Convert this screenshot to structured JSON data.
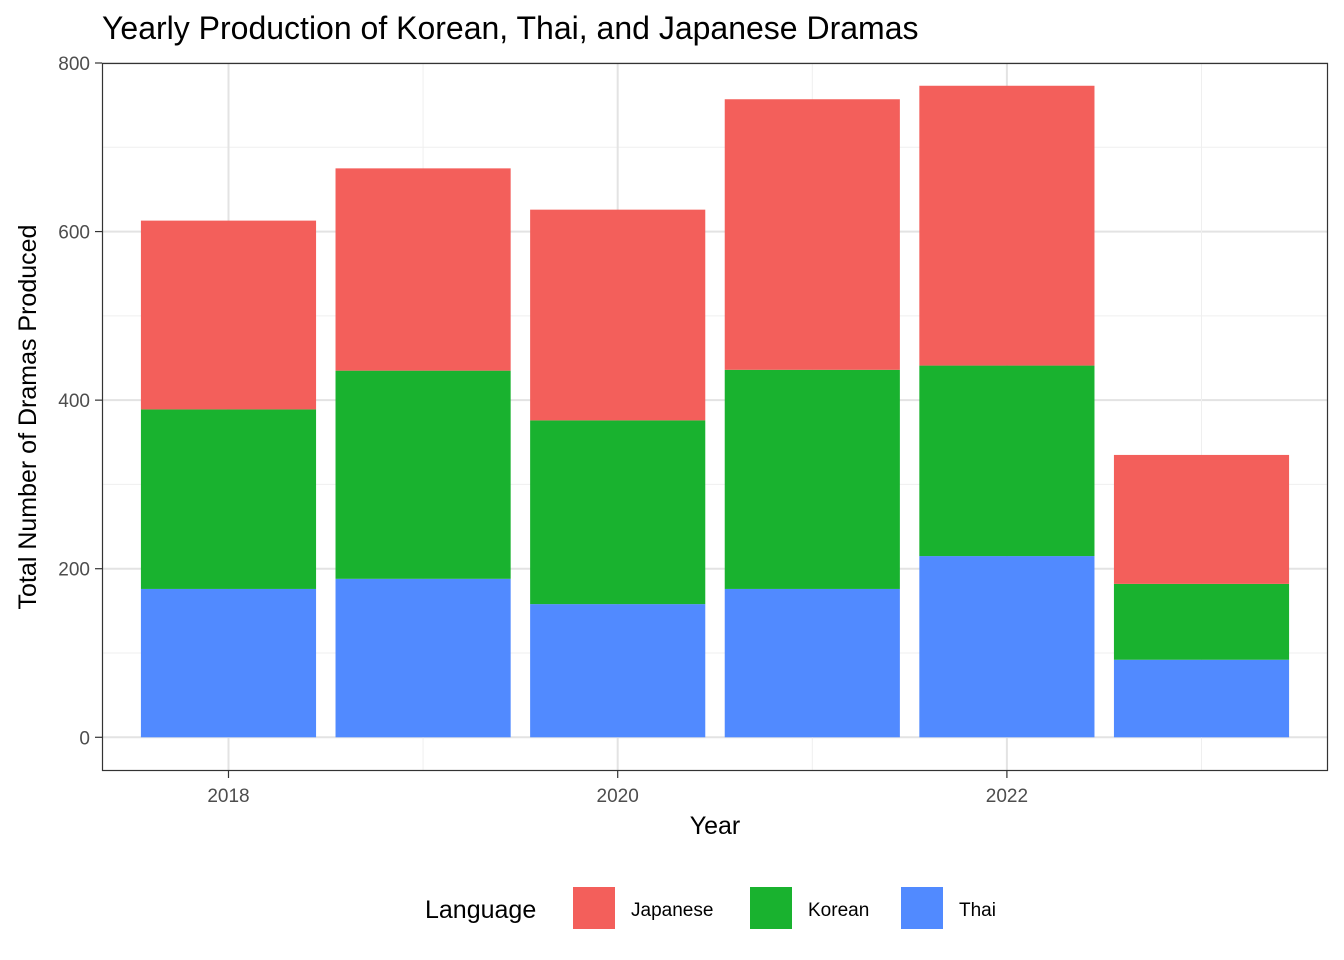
{
  "chart_data": {
    "type": "bar",
    "stacked": true,
    "title": "Yearly Production of Korean, Thai, and Japanese Dramas",
    "xlabel": "Year",
    "ylabel": "Total Number of Dramas Produced",
    "x": [
      2018,
      2019,
      2020,
      2021,
      2022,
      2023
    ],
    "x_tick_labels": [
      "2018",
      "2020",
      "2022"
    ],
    "y_ticks": [
      0,
      200,
      400,
      600,
      800
    ],
    "ylim": [
      -40,
      800
    ],
    "xlim": [
      2017.35,
      2023.65
    ],
    "grid": true,
    "legend": {
      "title": "Language",
      "position": "bottom"
    },
    "stack_order": [
      "Thai",
      "Korean",
      "Japanese"
    ],
    "series": [
      {
        "name": "Japanese",
        "color": "#F35F5B",
        "values": [
          224,
          240,
          250,
          321,
          332,
          153
        ]
      },
      {
        "name": "Korean",
        "color": "#19B22F",
        "values": [
          213,
          247,
          218,
          260,
          226,
          90
        ]
      },
      {
        "name": "Thai",
        "color": "#518AFF",
        "values": [
          176,
          188,
          158,
          176,
          215,
          92
        ]
      }
    ]
  }
}
